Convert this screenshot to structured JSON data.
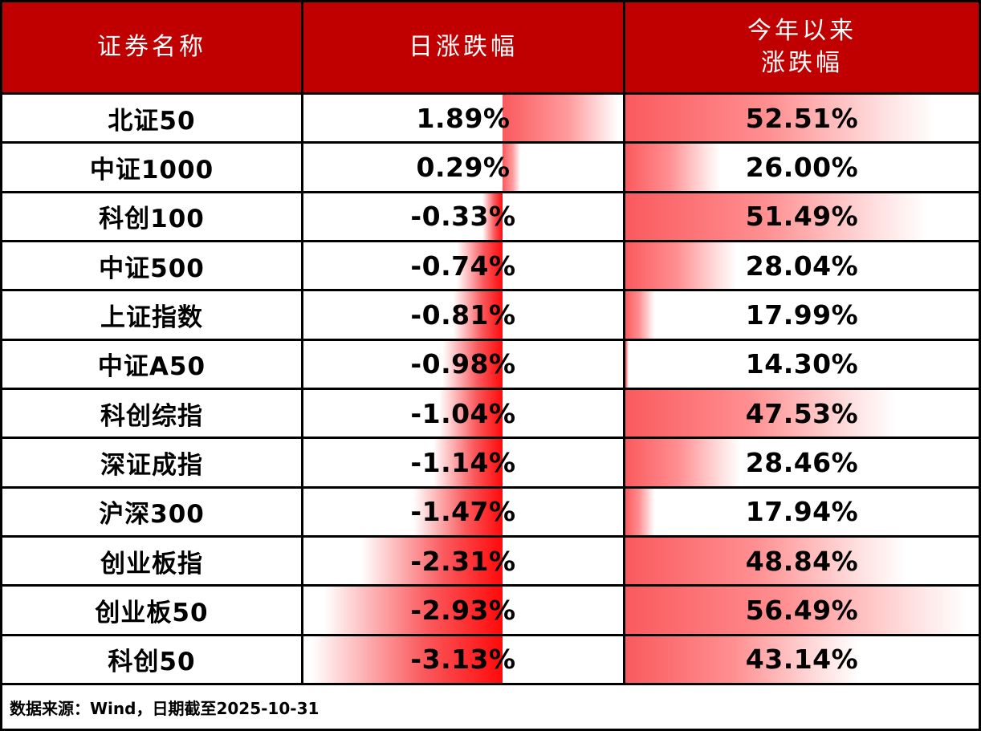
{
  "header": {
    "name_col": "证券名称",
    "daily_col": "日涨跌幅",
    "ytd_line1": "今年以来",
    "ytd_line2": "涨跌幅"
  },
  "rows": [
    {
      "name": "北证50",
      "daily": 1.89,
      "daily_label": "1.89%",
      "ytd": 52.51,
      "ytd_label": "52.51%"
    },
    {
      "name": "中证1000",
      "daily": 0.29,
      "daily_label": "0.29%",
      "ytd": 26.0,
      "ytd_label": "26.00%"
    },
    {
      "name": "科创100",
      "daily": -0.33,
      "daily_label": "-0.33%",
      "ytd": 51.49,
      "ytd_label": "51.49%"
    },
    {
      "name": "中证500",
      "daily": -0.74,
      "daily_label": "-0.74%",
      "ytd": 28.04,
      "ytd_label": "28.04%"
    },
    {
      "name": "上证指数",
      "daily": -0.81,
      "daily_label": "-0.81%",
      "ytd": 17.99,
      "ytd_label": "17.99%"
    },
    {
      "name": "中证A50",
      "daily": -0.98,
      "daily_label": "-0.98%",
      "ytd": 14.3,
      "ytd_label": "14.30%"
    },
    {
      "name": "科创综指",
      "daily": -1.04,
      "daily_label": "-1.04%",
      "ytd": 47.53,
      "ytd_label": "47.53%"
    },
    {
      "name": "深证成指",
      "daily": -1.14,
      "daily_label": "-1.14%",
      "ytd": 28.46,
      "ytd_label": "28.46%"
    },
    {
      "name": "沪深300",
      "daily": -1.47,
      "daily_label": "-1.47%",
      "ytd": 17.94,
      "ytd_label": "17.94%"
    },
    {
      "name": "创业板指",
      "daily": -2.31,
      "daily_label": "-2.31%",
      "ytd": 48.84,
      "ytd_label": "48.84%"
    },
    {
      "name": "创业板50",
      "daily": -2.93,
      "daily_label": "-2.93%",
      "ytd": 56.49,
      "ytd_label": "56.49%"
    },
    {
      "name": "科创50",
      "daily": -3.13,
      "daily_label": "-3.13%",
      "ytd": 43.14,
      "ytd_label": "43.14%"
    }
  ],
  "footer": {
    "source_note": "数据来源：Wind，日期截至2025-10-31"
  },
  "colors": {
    "header_bg": "#c00000",
    "header_text": "#ffffff",
    "row_text": "#000000",
    "border": "#000000",
    "bar_salmon": "#fa5a5e",
    "bar_negative_deep": "#ff0a0a"
  },
  "chart_data": {
    "type": "table",
    "title": "",
    "categories": [
      "北证50",
      "中证1000",
      "科创100",
      "中证500",
      "上证指数",
      "中证A50",
      "科创综指",
      "深证成指",
      "沪深300",
      "创业板指",
      "创业板50",
      "科创50"
    ],
    "series": [
      {
        "name": "日涨跌幅",
        "unit": "%",
        "values": [
          1.89,
          0.29,
          -0.33,
          -0.74,
          -0.81,
          -0.98,
          -1.04,
          -1.14,
          -1.47,
          -2.31,
          -2.93,
          -3.13
        ]
      },
      {
        "name": "今年以来涨跌幅",
        "unit": "%",
        "values": [
          52.51,
          26.0,
          51.49,
          28.04,
          17.99,
          14.3,
          47.53,
          28.46,
          17.94,
          48.84,
          56.49,
          43.14
        ]
      }
    ],
    "annotations": [
      "数据来源：Wind，日期截至2025-10-31"
    ],
    "layout_hints": {
      "daily_bars": "gradient data bars inside cells; axis between negatives and positives at 3.13/(3.13+1.89) of column width; negatives extend left (deep red at axis), positives extend right (salmon fading to white)",
      "ytd_bars": "left-anchored gradient data bars scaled linearly from min 14.30 (zero length) to max 56.49 (full column width)",
      "grid": "black 3px borders, dark red header band, bold black cell text"
    }
  }
}
